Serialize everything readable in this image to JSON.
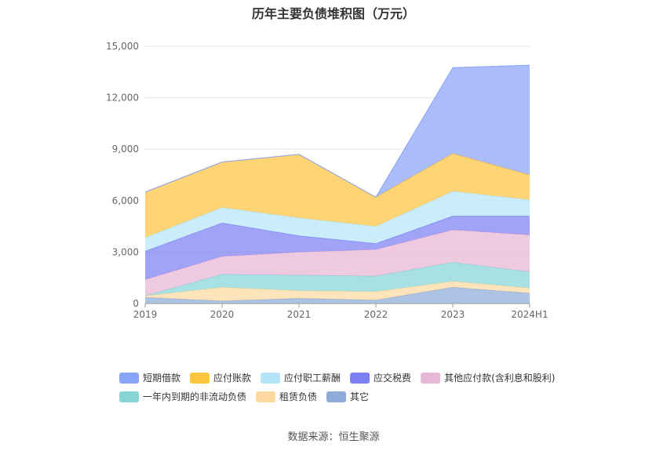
{
  "chart_data": {
    "type": "area",
    "title": "历年主要负债堆积图（万元）",
    "categories": [
      "2019",
      "2020",
      "2021",
      "2022",
      "2023",
      "2024H1"
    ],
    "ylim": [
      0,
      15000
    ],
    "yticks": [
      0,
      3000,
      6000,
      9000,
      12000,
      15000
    ],
    "ytick_labels": [
      "0",
      "3,000",
      "6,000",
      "9,000",
      "12,000",
      "15,000"
    ],
    "stacked": true,
    "grid": true,
    "legend_position": "bottom",
    "series": [
      {
        "name": "其它",
        "color": "#8fabd9",
        "values": [
          350,
          150,
          300,
          200,
          950,
          600
        ]
      },
      {
        "name": "租赁负债",
        "color": "#fdd9a0",
        "values": [
          100,
          800,
          450,
          500,
          350,
          300
        ]
      },
      {
        "name": "一年内到期的非流动负债",
        "color": "#86d6d8",
        "values": [
          0,
          750,
          900,
          900,
          1100,
          950
        ]
      },
      {
        "name": "其他应付款(含利息和股利)",
        "color": "#e8b6d6",
        "values": [
          950,
          1050,
          1350,
          1550,
          1900,
          2150
        ]
      },
      {
        "name": "应交税费",
        "color": "#7b7ff2",
        "values": [
          1650,
          1950,
          950,
          350,
          800,
          1100
        ]
      },
      {
        "name": "应付职工薪酬",
        "color": "#b5e4f9",
        "values": [
          800,
          900,
          1050,
          1000,
          1450,
          950
        ]
      },
      {
        "name": "应付账款",
        "color": "#fdc43e",
        "values": [
          2650,
          2650,
          3700,
          1700,
          2200,
          1450
        ]
      },
      {
        "name": "短期借款",
        "color": "#89a3f7",
        "values": [
          0,
          0,
          0,
          0,
          5000,
          6400
        ]
      }
    ],
    "legend_order": [
      "短期借款",
      "应付账款",
      "应付职工薪酬",
      "应交税费",
      "其他应付款(含利息和股利)",
      "一年内到期的非流动负债",
      "租赁负债",
      "其它"
    ]
  },
  "source": "数据来源：恒生聚源"
}
